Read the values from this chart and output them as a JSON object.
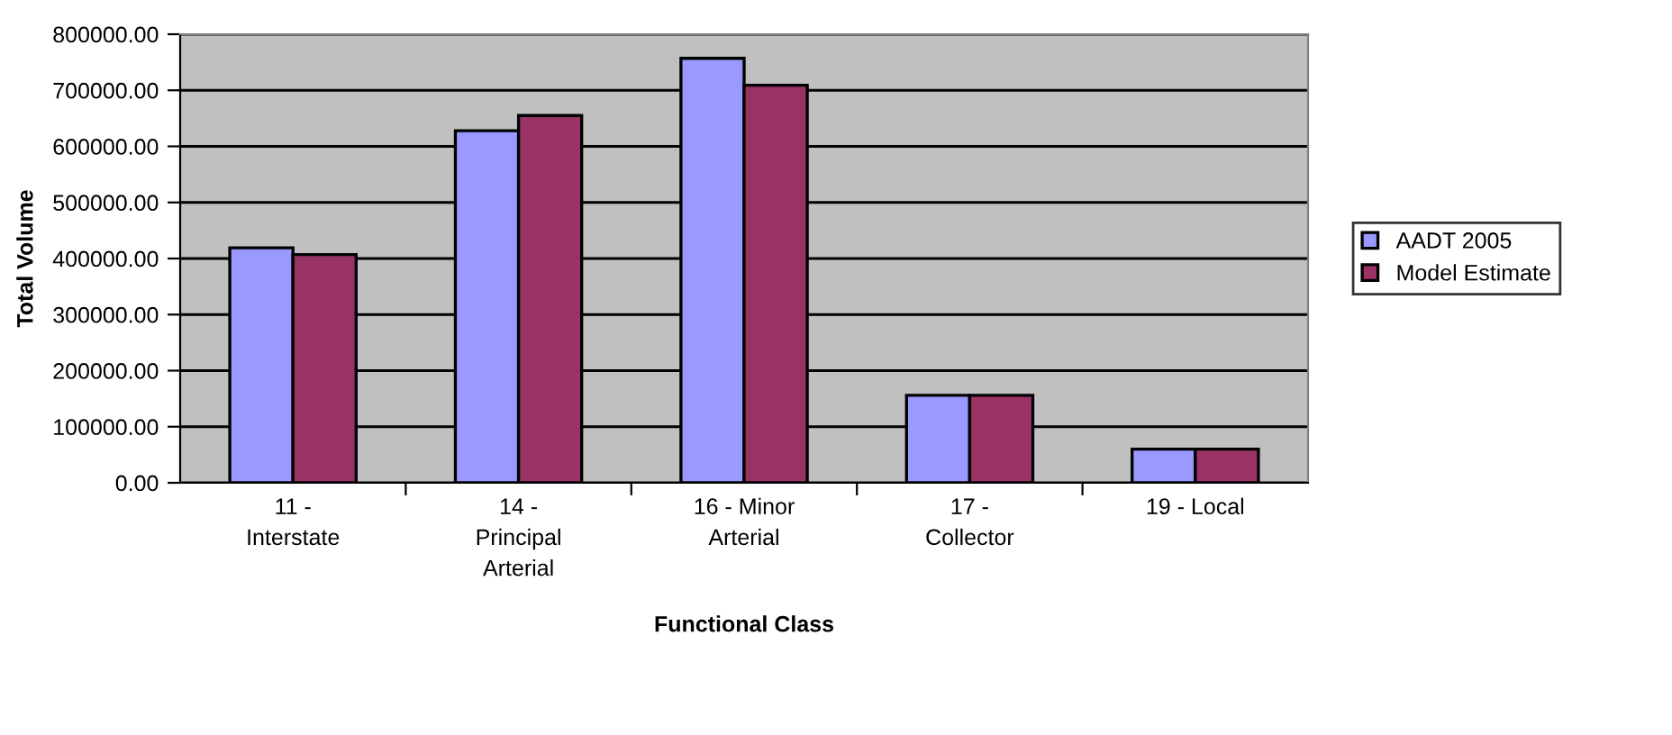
{
  "chart_data": {
    "type": "bar",
    "xlabel": "Functional Class",
    "ylabel": "Total Volume",
    "categories": [
      "11 -\nInterstate",
      "14 -\nPrincipal\nArterial",
      "16 - Minor\nArterial",
      "17 -\nCollector",
      "19 - Local"
    ],
    "series": [
      {
        "name": "AADT 2005",
        "color": "#9999ff",
        "values": [
          419000,
          628000,
          757000,
          156000,
          60000
        ]
      },
      {
        "name": "Model Estimate",
        "color": "#993366",
        "values": [
          407000,
          655000,
          709000,
          156000,
          60000
        ]
      }
    ],
    "ylim": [
      0,
      800000
    ],
    "yticks": [
      {
        "value": 0,
        "label": "0.00"
      },
      {
        "value": 100000,
        "label": "100000.00"
      },
      {
        "value": 200000,
        "label": "200000.00"
      },
      {
        "value": 300000,
        "label": "300000.00"
      },
      {
        "value": 400000,
        "label": "400000.00"
      },
      {
        "value": 500000,
        "label": "500000.00"
      },
      {
        "value": 600000,
        "label": "600000.00"
      },
      {
        "value": 700000,
        "label": "700000.00"
      },
      {
        "value": 800000,
        "label": "800000.00"
      }
    ],
    "grid": "y",
    "legend": "right"
  }
}
